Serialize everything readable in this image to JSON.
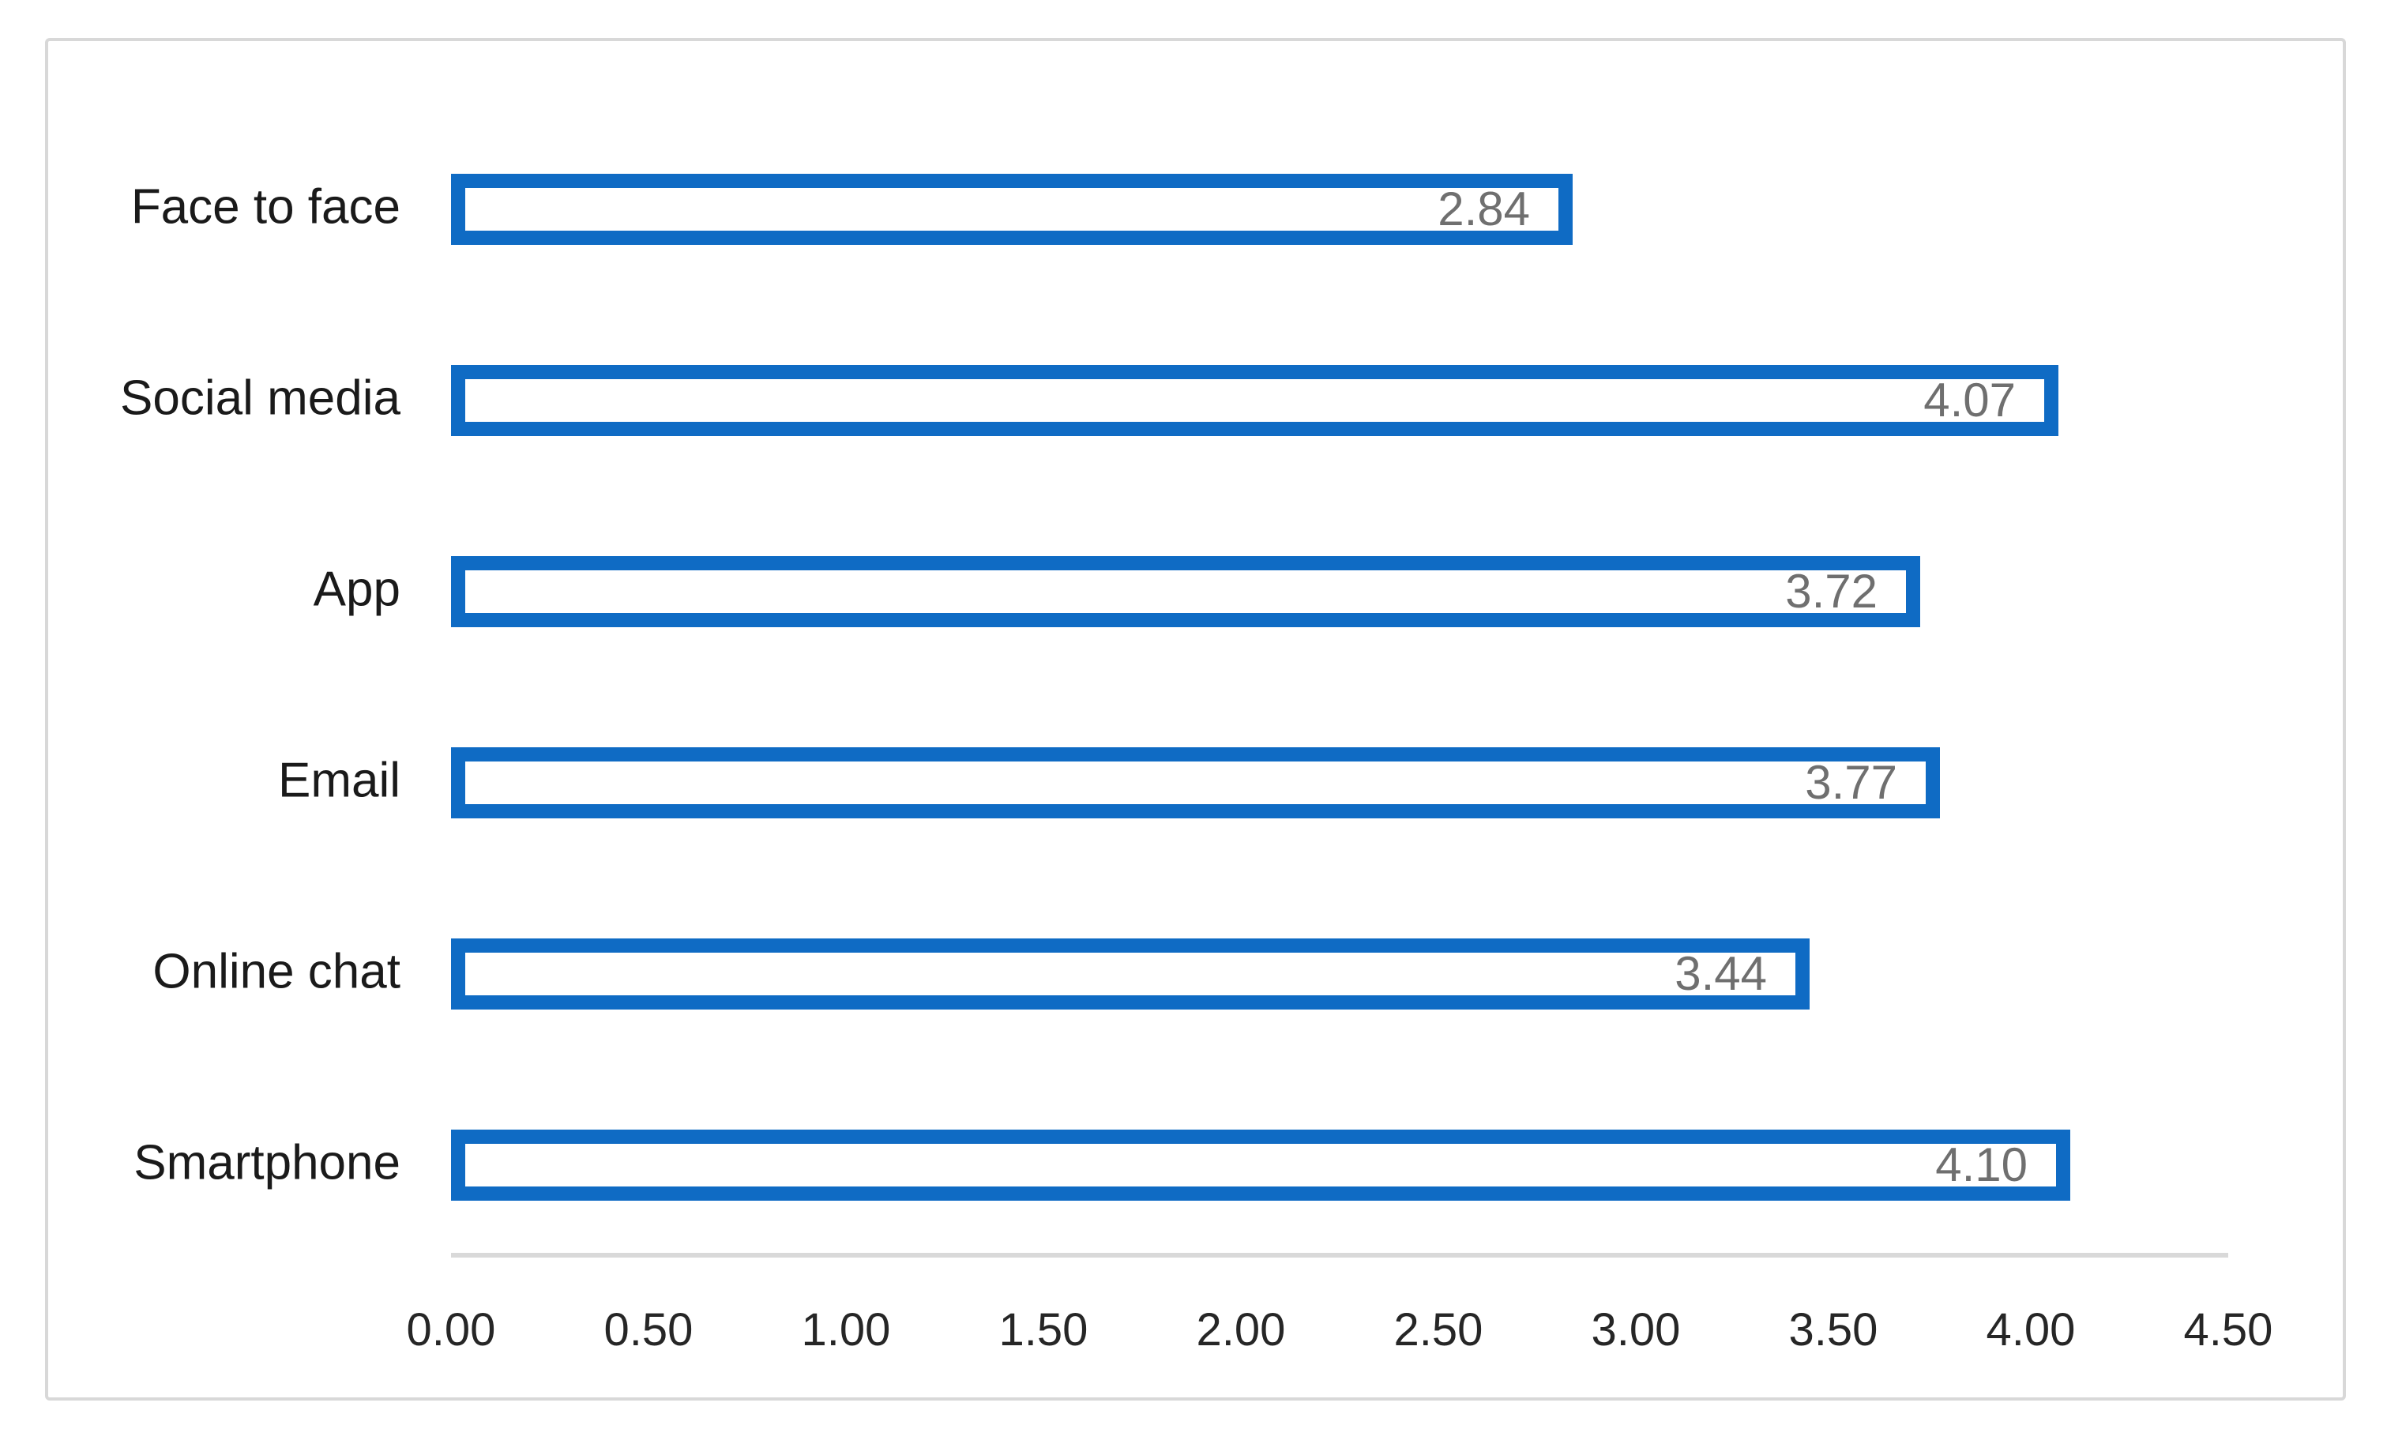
{
  "chart_data": {
    "type": "bar",
    "orientation": "horizontal",
    "title": "",
    "xlabel": "",
    "ylabel": "",
    "grid": false,
    "legend": false,
    "categories": [
      "Face to face",
      "Social media",
      "App",
      "Email",
      "Online chat",
      "Smartphone"
    ],
    "values": [
      2.84,
      4.07,
      3.72,
      3.77,
      3.44,
      4.1
    ],
    "value_labels": [
      "2.84",
      "4.07",
      "3.72",
      "3.77",
      "3.44",
      "4.10"
    ],
    "x_ticks": [
      "0.00",
      "0.50",
      "1.00",
      "1.50",
      "2.00",
      "2.50",
      "3.00",
      "3.50",
      "4.00",
      "4.50"
    ],
    "xlim": [
      0,
      4.5
    ],
    "bar_fill_color": "#ffffff",
    "bar_border_color": "#0f6bc4",
    "value_label_color": "#6f6f6f",
    "axis_line_color": "#d9d9d9",
    "category_label_color": "#1a1a1a",
    "tick_label_color": "#262626",
    "frame_border_color": "#d8d8d8"
  }
}
